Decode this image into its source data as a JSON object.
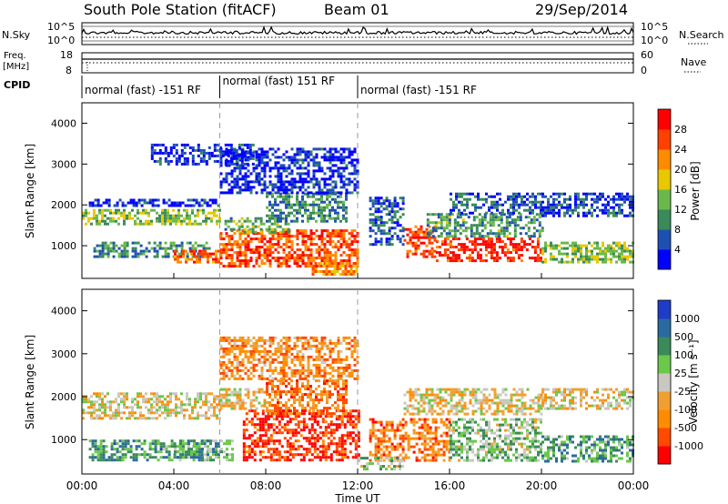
{
  "header": {
    "station": "South Pole Station (fitACF)",
    "beam": "Beam 01",
    "date": "29/Sep/2014"
  },
  "top_panels": {
    "nsky_label": "N.Sky",
    "nsky_ticks": [
      "10^5",
      "10^0"
    ],
    "nsky_right_ticks": [
      "10^5",
      "10^0"
    ],
    "nsearch_label": "N.Search",
    "freq_label_1": "Freq.",
    "freq_label_2": "[MHz]",
    "freq_ticks": [
      "18",
      "8"
    ],
    "nave_ticks": [
      "60",
      "0"
    ],
    "nave_label": "Nave",
    "cpid_label": "CPID",
    "cpid_segments": [
      {
        "label": "normal (fast) -151 RF",
        "start_hour": 0,
        "end_hour": 6
      },
      {
        "label": "normal (fast) 151 RF",
        "start_hour": 6,
        "end_hour": 12
      },
      {
        "label": "normal (fast) -151 RF",
        "start_hour": 12,
        "end_hour": 24
      }
    ]
  },
  "chart_data": [
    {
      "type": "heatmap",
      "title": "",
      "ylabel": "Slant Range [km]",
      "xlim": [
        0,
        24
      ],
      "ylim": [
        200,
        4500
      ],
      "yticks": [
        "4000",
        "3000",
        "2000",
        "1000"
      ],
      "colorbar_label": "Power [dB]",
      "colorbar_ticks": [
        "28",
        "24",
        "20",
        "16",
        "12",
        "8",
        "4"
      ],
      "colorbar_colors": [
        "#0000ff",
        "#1e50b4",
        "#3a8a5a",
        "#6ab84a",
        "#e8c800",
        "#ff8c00",
        "#ff4000",
        "#ff0000"
      ],
      "gridlines_hours": [
        6,
        12
      ],
      "bands": [
        {
          "t0": 0.0,
          "t1": 6.0,
          "r0": 1500,
          "r1": 1900,
          "level": 0.45
        },
        {
          "t0": 0.3,
          "t1": 6.0,
          "r0": 1950,
          "r1": 2150,
          "level": 0.1
        },
        {
          "t0": 0.5,
          "t1": 5.5,
          "r0": 700,
          "r1": 1100,
          "level": 0.3
        },
        {
          "t0": 4.0,
          "t1": 6.0,
          "r0": 600,
          "r1": 900,
          "level": 0.75
        },
        {
          "t0": 6.0,
          "t1": 12.0,
          "r0": 500,
          "r1": 1400,
          "level": 0.8
        },
        {
          "t0": 6.2,
          "t1": 9.0,
          "r0": 1300,
          "r1": 1700,
          "level": 0.4
        },
        {
          "t0": 8.0,
          "t1": 11.5,
          "r0": 1600,
          "r1": 2300,
          "level": 0.3
        },
        {
          "t0": 6.0,
          "t1": 12.0,
          "r0": 2300,
          "r1": 3400,
          "level": 0.1
        },
        {
          "t0": 10.0,
          "t1": 12.0,
          "r0": 300,
          "r1": 600,
          "level": 0.7
        },
        {
          "t0": 14.0,
          "t1": 15.4,
          "r0": 700,
          "r1": 1500,
          "level": 0.85
        },
        {
          "t0": 15.4,
          "t1": 20.0,
          "r0": 650,
          "r1": 1200,
          "level": 0.9
        },
        {
          "t0": 15.0,
          "t1": 20.0,
          "r0": 1200,
          "r1": 1800,
          "level": 0.35
        },
        {
          "t0": 16.0,
          "t1": 20.0,
          "r0": 1800,
          "r1": 2300,
          "level": 0.2
        },
        {
          "t0": 20.0,
          "t1": 24.0,
          "r0": 600,
          "r1": 1100,
          "level": 0.45
        },
        {
          "t0": 20.0,
          "t1": 24.0,
          "r0": 1700,
          "r1": 2300,
          "level": 0.15
        },
        {
          "t0": 12.5,
          "t1": 14.0,
          "r0": 1000,
          "r1": 2200,
          "level": 0.2
        },
        {
          "t0": 3.0,
          "t1": 7.5,
          "r0": 3000,
          "r1": 3500,
          "level": 0.1
        }
      ]
    },
    {
      "type": "heatmap",
      "title": "",
      "ylabel": "Slant Range [km]",
      "xlabel": "Time UT",
      "xlim": [
        0,
        24
      ],
      "ylim": [
        200,
        4500
      ],
      "yticks": [
        "4000",
        "3000",
        "2000",
        "1000"
      ],
      "xticks": [
        "00:00",
        "04:00",
        "08:00",
        "12:00",
        "16:00",
        "20:00",
        "00:00"
      ],
      "colorbar_label": "Velocity [m s⁻¹]",
      "colorbar_ticks": [
        "1000",
        "500",
        "100",
        "25",
        "-25",
        "-100",
        "-500",
        "-1000"
      ],
      "colorbar_colors": [
        "#ff0000",
        "#ff4a00",
        "#ff8c00",
        "#f0a030",
        "#c8c8c0",
        "#6ac84a",
        "#3a8a5a",
        "#2a6aa0",
        "#1e3cc8"
      ],
      "gridlines_hours": [
        6,
        12
      ],
      "bands": [
        {
          "t0": 0.0,
          "t1": 6.0,
          "r0": 1500,
          "r1": 2100,
          "level": 0.45
        },
        {
          "t0": 0.3,
          "t1": 5.5,
          "r0": 500,
          "r1": 1000,
          "level": 0.72
        },
        {
          "t0": 4.0,
          "t1": 6.5,
          "r0": 500,
          "r1": 1000,
          "level": 0.65
        },
        {
          "t0": 6.0,
          "t1": 8.0,
          "r0": 1700,
          "r1": 2200,
          "level": 0.45
        },
        {
          "t0": 7.0,
          "t1": 12.0,
          "r0": 500,
          "r1": 1700,
          "level": 0.1
        },
        {
          "t0": 8.0,
          "t1": 11.5,
          "r0": 1600,
          "r1": 2400,
          "level": 0.25
        },
        {
          "t0": 6.0,
          "t1": 12.0,
          "r0": 2400,
          "r1": 3400,
          "level": 0.3
        },
        {
          "t0": 12.5,
          "t1": 16.0,
          "r0": 500,
          "r1": 1500,
          "level": 0.25
        },
        {
          "t0": 14.0,
          "t1": 20.0,
          "r0": 1600,
          "r1": 2200,
          "level": 0.45
        },
        {
          "t0": 16.0,
          "t1": 20.0,
          "r0": 500,
          "r1": 1500,
          "level": 0.6
        },
        {
          "t0": 20.0,
          "t1": 24.0,
          "r0": 500,
          "r1": 1100,
          "level": 0.7
        },
        {
          "t0": 20.0,
          "t1": 24.0,
          "r0": 1700,
          "r1": 2200,
          "level": 0.45
        },
        {
          "t0": 12.0,
          "t1": 14.0,
          "r0": 300,
          "r1": 600,
          "level": 0.6
        }
      ]
    }
  ]
}
